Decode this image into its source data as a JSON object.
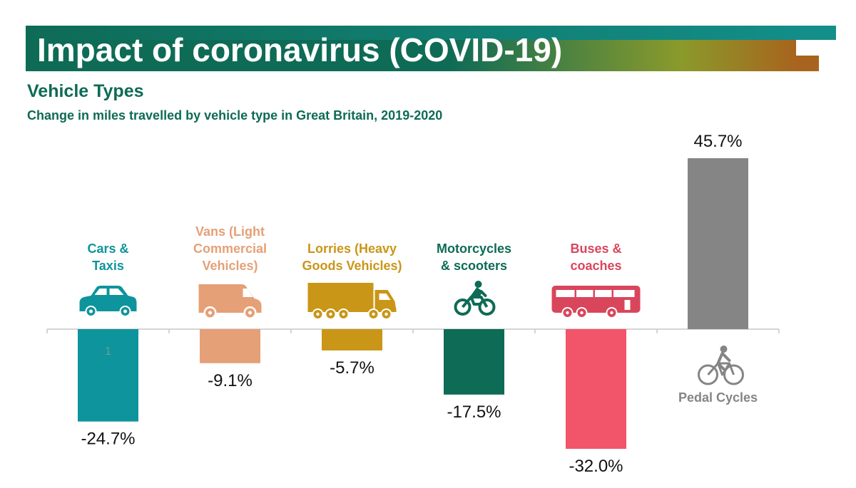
{
  "header": {
    "title": "Impact of coronavirus (COVID-19)",
    "subtitle": "Vehicle Types",
    "description": "Change in miles travelled by vehicle type in Great Britain, 2019-2020",
    "banner_colors": [
      "#0e6b56",
      "#138f8a",
      "#8a9a2b",
      "#a8641e"
    ]
  },
  "chart_data": {
    "type": "bar",
    "title": "",
    "xlabel": "",
    "ylabel": "",
    "ylim": [
      -35,
      50
    ],
    "grid": false,
    "legend": "none",
    "categories": [
      "Cars & Taxis",
      "Vans (Light Commercial Vehicles)",
      "Lorries (Heavy Goods Vehicles)",
      "Motorcycles & scooters",
      "Buses & coaches",
      "Pedal Cycles"
    ],
    "values": [
      -24.7,
      -9.1,
      -5.7,
      -17.5,
      -32.0,
      45.7
    ],
    "value_labels": [
      "-24.7%",
      "-9.1%",
      "-5.7%",
      "-17.5%",
      "-32.0%",
      "45.7%"
    ],
    "label_lines": [
      [
        "Cars &",
        "Taxis"
      ],
      [
        "Vans (Light",
        "Commercial",
        "Vehicles)"
      ],
      [
        "Lorries (Heavy",
        "Goods Vehicles)"
      ],
      [
        "Motorcycles",
        "& scooters"
      ],
      [
        "Buses &",
        "coaches"
      ],
      [
        "Pedal Cycles"
      ]
    ],
    "colors": [
      "#0e949c",
      "#e5a077",
      "#c99617",
      "#0e6b56",
      "#f2546a",
      "#858585"
    ],
    "label_colors": [
      "#0e949c",
      "#e5a077",
      "#c99617",
      "#0e6b56",
      "#d9465c",
      "#858585"
    ],
    "icons": [
      "car-icon",
      "van-icon",
      "lorry-icon",
      "motorcycle-icon",
      "bus-icon",
      "bicycle-icon"
    ],
    "annotations": [
      "1"
    ]
  }
}
